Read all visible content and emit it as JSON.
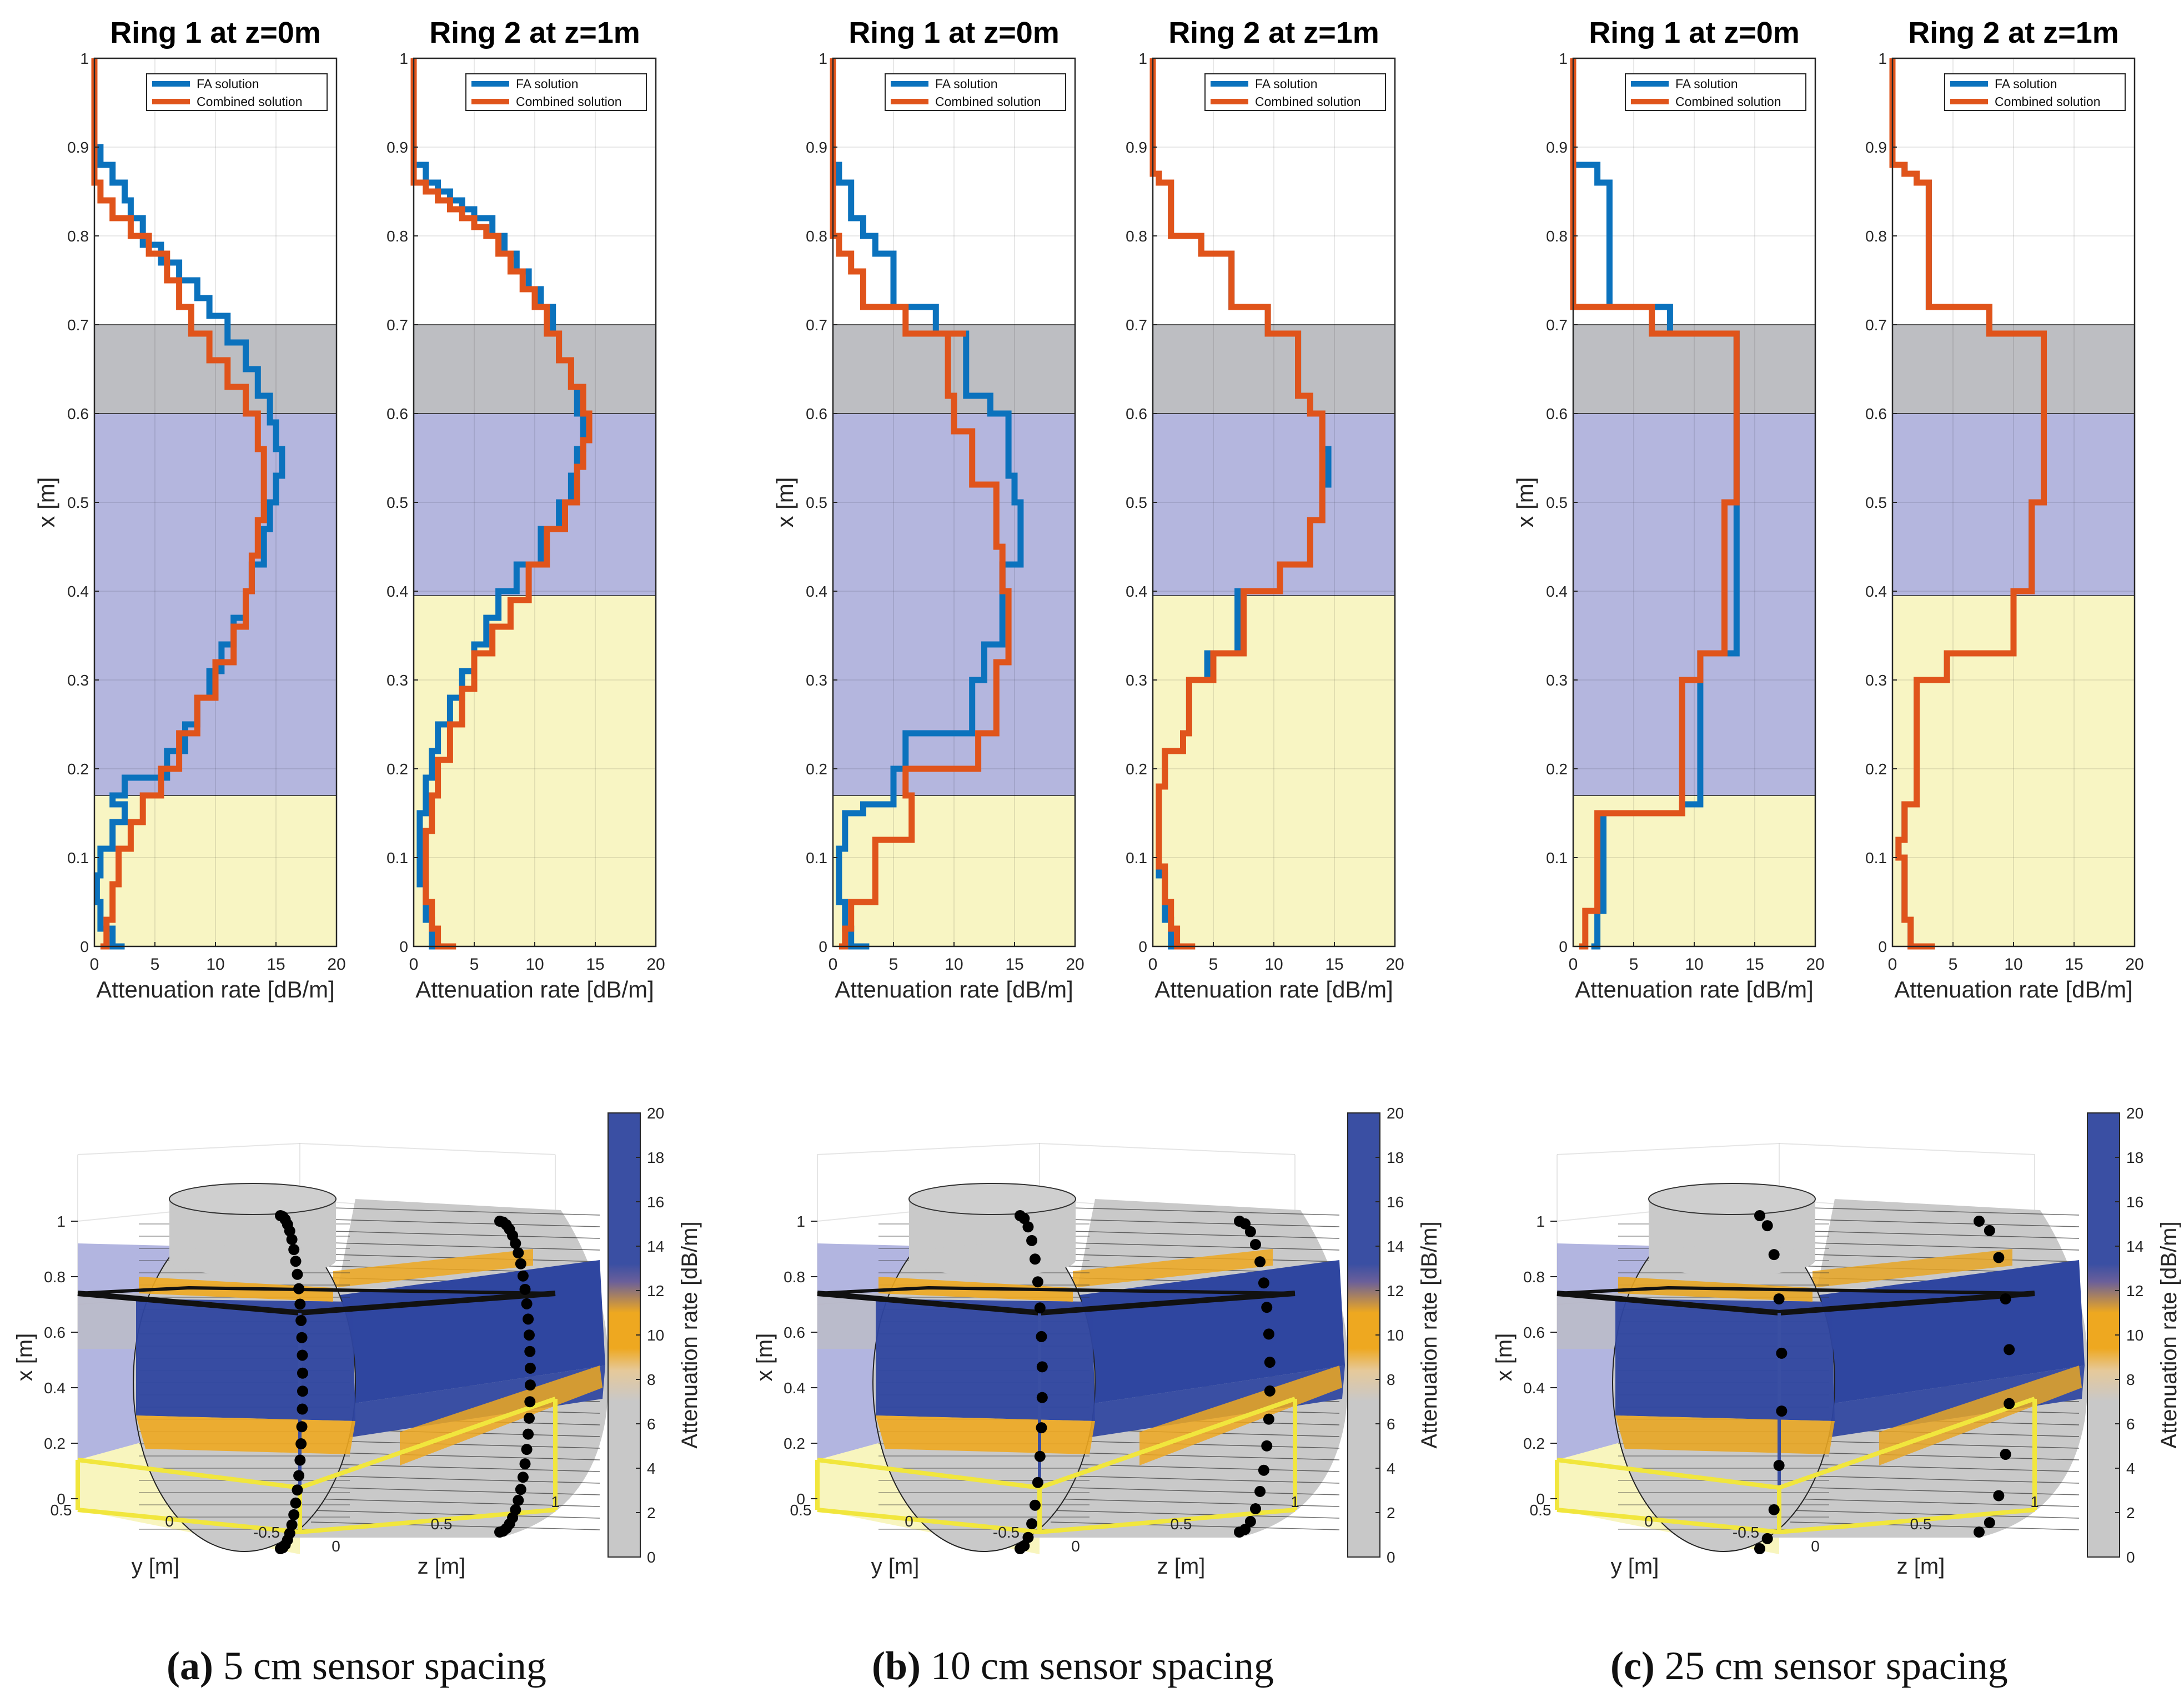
{
  "chart_data": [
    {
      "type": "line",
      "panel": "a",
      "title": "Ring 1 at z=0m",
      "xlabel": "Attenuation rate [dB/m]",
      "ylabel": "x [m]",
      "xlim": [
        0,
        20
      ],
      "ylim": [
        0,
        1
      ],
      "x_ticks": [
        "0",
        "5",
        "10",
        "15",
        "20"
      ],
      "y_ticks": [
        "0",
        "0.1",
        "0.2",
        "0.3",
        "0.4",
        "0.5",
        "0.6",
        "0.7",
        "0.8",
        "0.9",
        "1"
      ],
      "bands": [
        {
          "from": 0.0,
          "to": 0.17,
          "color": "#f8f5c3"
        },
        {
          "from": 0.17,
          "to": 0.6,
          "color": "#b4b6de"
        },
        {
          "from": 0.6,
          "to": 0.7,
          "color": "#bdbec2"
        }
      ],
      "legend": [
        "FA solution",
        "Combined solution"
      ],
      "series": [
        {
          "name": "FA solution",
          "color": "#0b72bd",
          "x": [
            2.5,
            1.5,
            0.5,
            0.2,
            0.5,
            1.5,
            2.5,
            1.5,
            2.5,
            6.0,
            7.5,
            8.5,
            9.5,
            10.5,
            11.5,
            12.5,
            13.0,
            14.0,
            14.5,
            15.0,
            15.5,
            15.0,
            14.5,
            13.5,
            12.5,
            11.0,
            9.5,
            8.5,
            7.0,
            5.5,
            4.0,
            3.0,
            2.5,
            1.5,
            0.5,
            0.0
          ],
          "y": [
            0.0,
            0.02,
            0.05,
            0.08,
            0.11,
            0.14,
            0.16,
            0.17,
            0.19,
            0.22,
            0.25,
            0.28,
            0.31,
            0.34,
            0.37,
            0.4,
            0.43,
            0.47,
            0.5,
            0.53,
            0.56,
            0.59,
            0.62,
            0.65,
            0.68,
            0.71,
            0.73,
            0.75,
            0.77,
            0.79,
            0.82,
            0.84,
            0.86,
            0.88,
            0.9,
            1.0
          ]
        },
        {
          "name": "Combined solution",
          "color": "#e0541b",
          "x": [
            0.5,
            1.0,
            1.5,
            2.0,
            3.0,
            4.0,
            5.5,
            7.0,
            8.5,
            10.0,
            11.5,
            12.5,
            13.0,
            13.5,
            14.0,
            14.0,
            13.5,
            12.5,
            11.0,
            9.5,
            8.0,
            7.0,
            6.0,
            4.5,
            3.0,
            1.5,
            0.5,
            0.0,
            0.0
          ],
          "y": [
            0.0,
            0.03,
            0.07,
            0.11,
            0.14,
            0.17,
            0.2,
            0.24,
            0.28,
            0.32,
            0.36,
            0.4,
            0.44,
            0.48,
            0.52,
            0.56,
            0.6,
            0.63,
            0.66,
            0.69,
            0.72,
            0.75,
            0.78,
            0.8,
            0.82,
            0.84,
            0.86,
            0.88,
            1.0
          ]
        }
      ]
    },
    {
      "type": "line",
      "panel": "a",
      "title": "Ring 2 at z=1m",
      "xlabel": "Attenuation rate [dB/m]",
      "xlim": [
        0,
        20
      ],
      "ylim": [
        0,
        1
      ],
      "x_ticks": [
        "0",
        "5",
        "10",
        "15",
        "20"
      ],
      "y_ticks": [
        "0",
        "0.1",
        "0.2",
        "0.3",
        "0.4",
        "0.5",
        "0.6",
        "0.7",
        "0.8",
        "0.9",
        "1"
      ],
      "bands": [
        {
          "from": 0.0,
          "to": 0.395,
          "color": "#f8f5c3"
        },
        {
          "from": 0.395,
          "to": 0.6,
          "color": "#b4b6de"
        },
        {
          "from": 0.6,
          "to": 0.7,
          "color": "#bdbec2"
        }
      ],
      "legend": [
        "FA solution",
        "Combined solution"
      ],
      "series": [
        {
          "name": "FA solution",
          "color": "#0b72bd",
          "x": [
            2.0,
            1.5,
            1.0,
            0.5,
            0.5,
            1.0,
            1.5,
            2.0,
            3.0,
            4.0,
            5.0,
            6.0,
            7.0,
            8.5,
            10.5,
            12.0,
            13.0,
            13.5,
            14.0,
            13.5,
            13.0,
            12.0,
            11.5,
            10.5,
            9.5,
            8.5,
            7.5,
            6.5,
            5.0,
            4.0,
            3.0,
            2.0,
            1.0,
            0.0,
            0.0
          ],
          "y": [
            0.0,
            0.03,
            0.07,
            0.11,
            0.15,
            0.19,
            0.22,
            0.25,
            0.28,
            0.31,
            0.34,
            0.37,
            0.4,
            0.43,
            0.47,
            0.5,
            0.53,
            0.56,
            0.6,
            0.63,
            0.66,
            0.69,
            0.72,
            0.74,
            0.76,
            0.78,
            0.8,
            0.82,
            0.83,
            0.84,
            0.85,
            0.86,
            0.88,
            0.9,
            1.0
          ]
        },
        {
          "name": "Combined solution",
          "color": "#e0541b",
          "x": [
            3.5,
            2.0,
            1.5,
            1.0,
            1.0,
            1.5,
            2.0,
            3.0,
            4.0,
            5.0,
            6.5,
            8.0,
            9.5,
            11.0,
            12.5,
            13.5,
            14.0,
            14.5,
            14.0,
            13.0,
            12.0,
            11.0,
            10.0,
            9.0,
            8.0,
            7.0,
            6.0,
            5.0,
            4.0,
            3.0,
            2.0,
            1.0,
            0.0,
            0.0
          ],
          "y": [
            0.0,
            0.02,
            0.05,
            0.09,
            0.13,
            0.17,
            0.21,
            0.25,
            0.29,
            0.33,
            0.36,
            0.39,
            0.43,
            0.47,
            0.5,
            0.54,
            0.57,
            0.6,
            0.63,
            0.66,
            0.69,
            0.72,
            0.74,
            0.76,
            0.78,
            0.8,
            0.81,
            0.82,
            0.83,
            0.84,
            0.85,
            0.86,
            0.9,
            1.0
          ]
        }
      ]
    },
    {
      "type": "line",
      "panel": "b",
      "title": "Ring 1 at z=0m",
      "xlabel": "Attenuation rate [dB/m]",
      "ylabel": "x [m]",
      "xlim": [
        0,
        20
      ],
      "ylim": [
        0,
        1
      ],
      "x_ticks": [
        "0",
        "5",
        "10",
        "15",
        "20"
      ],
      "y_ticks": [
        "0",
        "0.1",
        "0.2",
        "0.3",
        "0.4",
        "0.5",
        "0.6",
        "0.7",
        "0.8",
        "0.9",
        "1"
      ],
      "bands": [
        {
          "from": 0.0,
          "to": 0.17,
          "color": "#f8f5c3"
        },
        {
          "from": 0.17,
          "to": 0.6,
          "color": "#b4b6de"
        },
        {
          "from": 0.6,
          "to": 0.7,
          "color": "#bdbec2"
        }
      ],
      "legend": [
        "FA solution",
        "Combined solution"
      ],
      "series": [
        {
          "name": "FA solution",
          "color": "#0b72bd",
          "x": [
            3.0,
            1.5,
            1.0,
            0.5,
            0.5,
            1.0,
            2.5,
            5.0,
            6.0,
            11.5,
            12.5,
            14.0,
            15.5,
            15.0,
            14.5,
            13.0,
            11.0,
            8.5,
            5.0,
            3.5,
            2.5,
            1.5,
            0.5,
            0.0
          ],
          "y": [
            0.0,
            0.02,
            0.05,
            0.08,
            0.11,
            0.15,
            0.16,
            0.2,
            0.24,
            0.3,
            0.34,
            0.43,
            0.5,
            0.53,
            0.6,
            0.62,
            0.69,
            0.72,
            0.78,
            0.8,
            0.82,
            0.86,
            0.88,
            1.0
          ]
        },
        {
          "name": "Combined solution",
          "color": "#e0541b",
          "x": [
            0.5,
            1.0,
            1.5,
            3.5,
            6.5,
            6.0,
            12.0,
            13.5,
            14.5,
            14.0,
            13.5,
            11.5,
            10.0,
            9.5,
            11.0,
            6.0,
            2.5,
            1.5,
            0.5,
            0.0
          ],
          "y": [
            0.0,
            0.02,
            0.05,
            0.12,
            0.17,
            0.2,
            0.24,
            0.32,
            0.4,
            0.45,
            0.52,
            0.58,
            0.62,
            0.69,
            0.69,
            0.72,
            0.76,
            0.78,
            0.8,
            1.0
          ]
        }
      ]
    },
    {
      "type": "line",
      "panel": "b",
      "title": "Ring 2 at z=1m",
      "xlabel": "Attenuation rate [dB/m]",
      "xlim": [
        0,
        20
      ],
      "ylim": [
        0,
        1
      ],
      "x_ticks": [
        "0",
        "5",
        "10",
        "15",
        "20"
      ],
      "y_ticks": [
        "0",
        "0.1",
        "0.2",
        "0.3",
        "0.4",
        "0.5",
        "0.6",
        "0.7",
        "0.8",
        "0.9",
        "1"
      ],
      "bands": [
        {
          "from": 0.0,
          "to": 0.395,
          "color": "#f8f5c3"
        },
        {
          "from": 0.395,
          "to": 0.6,
          "color": "#b4b6de"
        },
        {
          "from": 0.6,
          "to": 0.7,
          "color": "#bdbec2"
        }
      ],
      "legend": [
        "FA solution",
        "Combined solution"
      ],
      "series": [
        {
          "name": "FA solution",
          "color": "#0b72bd",
          "x": [
            2.0,
            1.5,
            1.0,
            0.5,
            0.5,
            1.0,
            2.5,
            3.0,
            4.5,
            7.0,
            8.0,
            10.5,
            13.0,
            14.0,
            14.5,
            14.0,
            13.0,
            12.0,
            9.5,
            6.5,
            4.0,
            1.5,
            0.5,
            0.0
          ],
          "y": [
            0.0,
            0.03,
            0.08,
            0.13,
            0.18,
            0.22,
            0.24,
            0.3,
            0.33,
            0.4,
            0.4,
            0.43,
            0.48,
            0.52,
            0.56,
            0.6,
            0.62,
            0.69,
            0.72,
            0.78,
            0.8,
            0.86,
            0.87,
            1.0
          ]
        },
        {
          "name": "Combined solution",
          "color": "#e0541b",
          "x": [
            3.5,
            2.0,
            1.5,
            1.0,
            0.5,
            0.5,
            1.0,
            2.5,
            3.0,
            5.0,
            7.5,
            8.5,
            10.5,
            13.0,
            14.0,
            14.0,
            13.0,
            12.0,
            9.5,
            6.5,
            4.0,
            1.5,
            0.5,
            0.0
          ],
          "y": [
            0.0,
            0.02,
            0.05,
            0.09,
            0.13,
            0.18,
            0.22,
            0.24,
            0.3,
            0.33,
            0.4,
            0.4,
            0.43,
            0.48,
            0.52,
            0.6,
            0.62,
            0.69,
            0.72,
            0.78,
            0.8,
            0.86,
            0.87,
            1.0
          ]
        }
      ]
    },
    {
      "type": "line",
      "panel": "c",
      "title": "Ring 1 at z=0m",
      "xlabel": "Attenuation rate [dB/m]",
      "ylabel": "x [m]",
      "xlim": [
        0,
        20
      ],
      "ylim": [
        0,
        1
      ],
      "x_ticks": [
        "0",
        "5",
        "10",
        "15",
        "20"
      ],
      "y_ticks": [
        "0",
        "0.1",
        "0.2",
        "0.3",
        "0.4",
        "0.5",
        "0.6",
        "0.7",
        "0.8",
        "0.9",
        "1"
      ],
      "bands": [
        {
          "from": 0.0,
          "to": 0.17,
          "color": "#f8f5c3"
        },
        {
          "from": 0.17,
          "to": 0.6,
          "color": "#b4b6de"
        },
        {
          "from": 0.6,
          "to": 0.7,
          "color": "#bdbec2"
        }
      ],
      "legend": [
        "FA solution",
        "Combined solution"
      ],
      "series": [
        {
          "name": "FA solution",
          "color": "#0b72bd",
          "x": [
            1.5,
            2.0,
            2.5,
            9.0,
            10.5,
            13.5,
            13.5,
            13.5,
            8.0,
            3.0,
            2.0,
            1.0,
            0.0
          ],
          "y": [
            0.0,
            0.04,
            0.15,
            0.16,
            0.33,
            0.33,
            0.53,
            0.69,
            0.72,
            0.86,
            0.88,
            0.88,
            1.0
          ]
        },
        {
          "name": "Combined solution",
          "color": "#e0541b",
          "x": [
            0.5,
            1.0,
            2.0,
            9.0,
            9.0,
            10.5,
            12.5,
            13.5,
            13.5,
            7.0,
            6.5,
            0.5,
            0.0
          ],
          "y": [
            0.0,
            0.04,
            0.15,
            0.16,
            0.3,
            0.33,
            0.5,
            0.53,
            0.69,
            0.69,
            0.72,
            0.72,
            1.0
          ]
        }
      ]
    },
    {
      "type": "line",
      "panel": "c",
      "title": "Ring 2 at z=1m",
      "xlabel": "Attenuation rate [dB/m]",
      "xlim": [
        0,
        20
      ],
      "ylim": [
        0,
        1
      ],
      "x_ticks": [
        "0",
        "5",
        "10",
        "15",
        "20"
      ],
      "y_ticks": [
        "0",
        "0.1",
        "0.2",
        "0.3",
        "0.4",
        "0.5",
        "0.6",
        "0.7",
        "0.8",
        "0.9",
        "1"
      ],
      "bands": [
        {
          "from": 0.0,
          "to": 0.395,
          "color": "#f8f5c3"
        },
        {
          "from": 0.395,
          "to": 0.6,
          "color": "#b4b6de"
        },
        {
          "from": 0.6,
          "to": 0.7,
          "color": "#bdbec2"
        }
      ],
      "legend": [
        "FA solution",
        "Combined solution"
      ],
      "series": [
        {
          "name": "FA solution",
          "color": "#0b72bd",
          "x": [
            3.5,
            1.5,
            1.0,
            0.5,
            1.0,
            2.0,
            4.5,
            10.0,
            10.0,
            11.5,
            12.5,
            12.5,
            8.0,
            3.0,
            2.0,
            1.0,
            0.0
          ],
          "y": [
            0.0,
            0.03,
            0.1,
            0.12,
            0.16,
            0.3,
            0.33,
            0.33,
            0.4,
            0.5,
            0.53,
            0.69,
            0.72,
            0.86,
            0.87,
            0.88,
            1.0
          ]
        },
        {
          "name": "Combined solution",
          "color": "#e0541b",
          "x": [
            3.5,
            1.5,
            1.0,
            0.5,
            1.0,
            2.0,
            4.5,
            10.0,
            10.0,
            11.5,
            12.5,
            12.5,
            8.0,
            3.0,
            2.0,
            1.0,
            0.0
          ],
          "y": [
            0.0,
            0.03,
            0.1,
            0.12,
            0.16,
            0.3,
            0.33,
            0.33,
            0.4,
            0.5,
            0.53,
            0.69,
            0.72,
            0.86,
            0.87,
            0.88,
            1.0
          ]
        }
      ]
    }
  ],
  "surface_plots": [
    {
      "panel": "a",
      "x_ticks": [
        "0",
        "0.2",
        "0.4",
        "0.6",
        "0.8",
        "1"
      ],
      "y_ticks": [
        "0.5",
        "0",
        "-0.5"
      ],
      "z_ticks": [
        "0",
        "0.5",
        "1"
      ],
      "xlabel": "x [m]",
      "ylabel": "y [m]",
      "zlabel": "z [m]"
    },
    {
      "panel": "b",
      "x_ticks": [
        "0",
        "0.2",
        "0.4",
        "0.6",
        "0.8",
        "1"
      ],
      "y_ticks": [
        "0.5",
        "0",
        "-0.5"
      ],
      "z_ticks": [
        "0",
        "0.5",
        "1"
      ],
      "xlabel": "x [m]",
      "ylabel": "y [m]",
      "zlabel": "z [m]"
    },
    {
      "panel": "c",
      "x_ticks": [
        "0",
        "0.2",
        "0.4",
        "0.6",
        "0.8",
        "1"
      ],
      "y_ticks": [
        "0.5",
        "0",
        "-0.5"
      ],
      "z_ticks": [
        "0",
        "0.5",
        "1"
      ],
      "xlabel": "x [m]",
      "ylabel": "y [m]",
      "zlabel": "z [m]"
    }
  ],
  "colorbar": {
    "label": "Attenuation rate [dB/m]",
    "ticks": [
      "0",
      "2",
      "4",
      "6",
      "8",
      "10",
      "12",
      "14",
      "16",
      "18",
      "20"
    ],
    "range": [
      0,
      20
    ],
    "colors": {
      "low": "#c8c8c8",
      "mid": "#eea820",
      "high": "#3a4fa3"
    }
  },
  "captions": [
    {
      "letter": "(a)",
      "text": " 5 cm sensor spacing"
    },
    {
      "letter": "(b)",
      "text": " 10 cm sensor spacing"
    },
    {
      "letter": "(c)",
      "text": " 25 cm sensor spacing"
    }
  ]
}
